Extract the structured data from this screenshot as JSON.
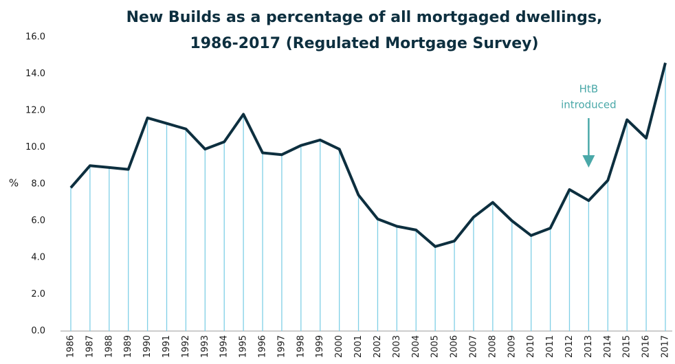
{
  "chart_data": {
    "type": "line",
    "title": [
      "New Builds as a percentage of all mortgaged dwellings,",
      "1986-2017 (Regulated Mortgage Survey)"
    ],
    "ylabel": "%",
    "annotation": [
      "HtB",
      "introduced"
    ],
    "categories": [
      "1986",
      "1987",
      "1988",
      "1989",
      "1990",
      "1991",
      "1992",
      "1993",
      "1994",
      "1995",
      "1996",
      "1997",
      "1998",
      "1999",
      "2000",
      "2001",
      "2002",
      "2003",
      "2004",
      "2005",
      "2006",
      "2007",
      "2008",
      "2009",
      "2010",
      "2011",
      "2012",
      "2013",
      "2014",
      "2015",
      "2016",
      "2017"
    ],
    "series": [
      {
        "name": "New Builds",
        "color": "#0d2f3f",
        "drop_color": "#7fcfe6",
        "values": [
          7.8,
          9.0,
          8.9,
          8.8,
          11.6,
          11.3,
          11.0,
          9.9,
          10.3,
          11.8,
          9.7,
          9.6,
          10.1,
          10.4,
          9.9,
          7.4,
          6.1,
          5.7,
          5.5,
          4.6,
          4.9,
          6.2,
          7.0,
          6.0,
          5.2,
          5.6,
          7.7,
          7.1,
          8.2,
          11.5,
          10.5,
          14.6
        ]
      }
    ],
    "annotation_color": "#4aa8a8",
    "ylim": [
      0,
      16
    ],
    "yticks": [
      {
        "value": 0,
        "label": "0.0"
      },
      {
        "value": 2,
        "label": "2.0"
      },
      {
        "value": 4,
        "label": "4.0"
      },
      {
        "value": 6,
        "label": "6.0"
      },
      {
        "value": 8,
        "label": "8.0"
      },
      {
        "value": 10,
        "label": "10.0"
      },
      {
        "value": 12,
        "label": "12.0"
      },
      {
        "value": 14,
        "label": "14.0"
      },
      {
        "value": 16,
        "label": "16.0"
      }
    ]
  }
}
